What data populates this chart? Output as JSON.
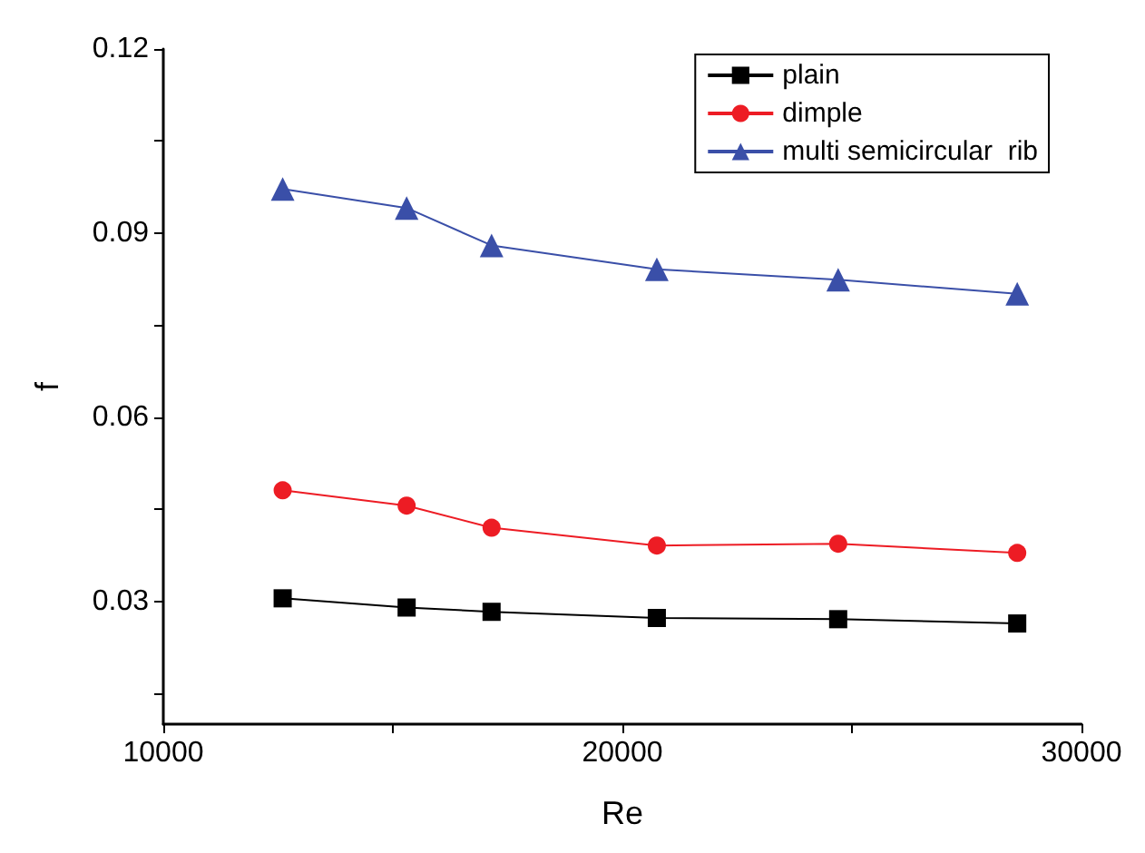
{
  "chart_data": {
    "type": "line",
    "xlabel": "Re",
    "ylabel": "f",
    "x": [
      12600,
      15300,
      17150,
      20750,
      24700,
      28600
    ],
    "series": [
      {
        "name": "plain",
        "color": "#000000",
        "marker": "square",
        "values": [
          0.0305,
          0.029,
          0.0283,
          0.0273,
          0.0271,
          0.0264
        ]
      },
      {
        "name": "dimple",
        "color": "#ed1c24",
        "marker": "circle",
        "values": [
          0.0481,
          0.0456,
          0.042,
          0.0391,
          0.0394,
          0.0379
        ]
      },
      {
        "name": "multi semicircular  rib",
        "color": "#3a4fa8",
        "marker": "triangle",
        "values": [
          0.0972,
          0.0941,
          0.088,
          0.0841,
          0.0824,
          0.0801
        ]
      }
    ],
    "xlim": [
      10000,
      30000
    ],
    "xticks": [
      10000,
      {
        "value": 15000,
        "label": null
      },
      20000,
      {
        "value": 25000,
        "label": null
      },
      30000
    ],
    "ylim": [
      0.01,
      0.12
    ],
    "yticks": [
      {
        "value": 0.015,
        "label": null
      },
      0.03,
      {
        "value": 0.045,
        "label": null
      },
      0.06,
      {
        "value": 0.075,
        "label": null
      },
      0.09,
      {
        "value": 0.105,
        "label": null
      },
      0.12
    ],
    "grid": false,
    "legend": "top right",
    "line_style": "solid"
  }
}
